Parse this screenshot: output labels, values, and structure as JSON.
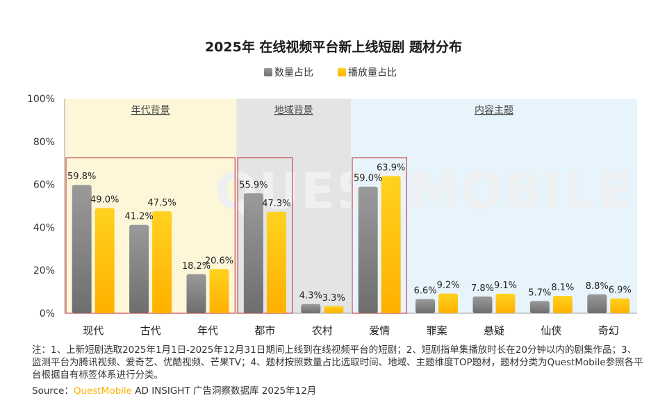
{
  "chart_data": {
    "type": "bar",
    "title": "2025年 在线视频平台新上线短剧 题材分布",
    "categories": [
      "现代",
      "古代",
      "年代",
      "都市",
      "农村",
      "爱情",
      "罪案",
      "悬疑",
      "仙侠",
      "奇幻"
    ],
    "series": [
      {
        "name": "数量占比",
        "values": [
          59.8,
          41.2,
          18.2,
          55.9,
          4.3,
          59.0,
          6.6,
          7.8,
          5.7,
          8.8
        ],
        "color": "#8c8c8c"
      },
      {
        "name": "播放量占比",
        "values": [
          49.0,
          47.5,
          20.6,
          47.3,
          3.3,
          63.9,
          9.2,
          9.1,
          8.1,
          6.9
        ],
        "color": "#ffc000"
      }
    ],
    "value_labels": [
      [
        "59.8%",
        "41.2%",
        "18.2%",
        "55.9%",
        "4.3%",
        "59.0%",
        "6.6%",
        "7.8%",
        "5.7%",
        "8.8%"
      ],
      [
        "49.0%",
        "47.5%",
        "20.6%",
        "47.3%",
        "3.3%",
        "63.9%",
        "9.2%",
        "9.1%",
        "8.1%",
        "6.9%"
      ]
    ],
    "y_ticks": [
      "0%",
      "20%",
      "40%",
      "60%",
      "80%",
      "100%"
    ],
    "ylim": [
      0,
      100
    ],
    "groups": [
      {
        "label": "年代背景",
        "start": 0,
        "end": 2,
        "color": "#fdf6d8"
      },
      {
        "label": "地域背景",
        "start": 3,
        "end": 4,
        "color": "#e4e4e4"
      },
      {
        "label": "内容主题",
        "start": 5,
        "end": 9,
        "color": "#e8f4fb"
      }
    ],
    "highlight_boxes": [
      [
        0,
        2
      ],
      [
        3,
        3
      ],
      [
        5,
        5
      ]
    ],
    "highlight_color": "#c0262d",
    "watermark": "QUESTMOBILE"
  },
  "footnote": "注：1、上新短剧选取2025年1月1日-2025年12月31日期间上线到在线视频平台的短剧；2、短剧指单集播放时长在20分钟以内的剧集作品；3、监测平台为腾讯视频、爱奇艺、优酷视频、芒果TV；4、题材按照数量占比选取时间、地域、主题维度TOP题材，题材分类为QuestMobile参照各平台根据自有标签体系进行分类。",
  "source": {
    "prefix": "Source：",
    "brand": "QuestMobile",
    "suffix": " AD INSIGHT 广告洞察数据库 2025年12月"
  }
}
